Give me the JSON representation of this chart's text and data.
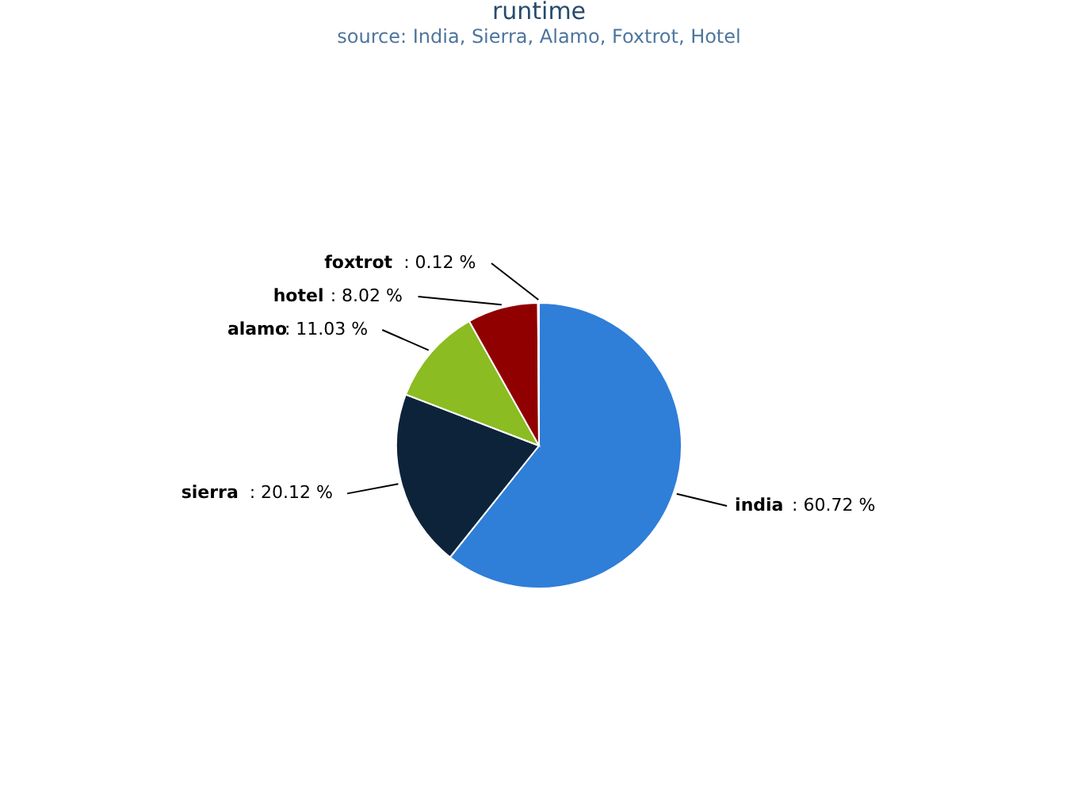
{
  "chart_data": {
    "type": "pie",
    "title": "runtime",
    "subtitle": "source: India, Sierra, Alamo, Foxtrot, Hotel",
    "categories": [
      "india",
      "sierra",
      "alamo",
      "hotel",
      "foxtrot"
    ],
    "values": [
      60.72,
      20.12,
      11.03,
      8.02,
      0.12
    ],
    "colors": [
      "#2f7ed8",
      "#0d233a",
      "#8bbc21",
      "#910000",
      "#1aadce"
    ],
    "value_labels": [
      ": 60.72 %",
      ": 20.12 %",
      ": 11.03 %",
      ": 8.02 %",
      ": 0.12 %"
    ],
    "legend": false
  }
}
